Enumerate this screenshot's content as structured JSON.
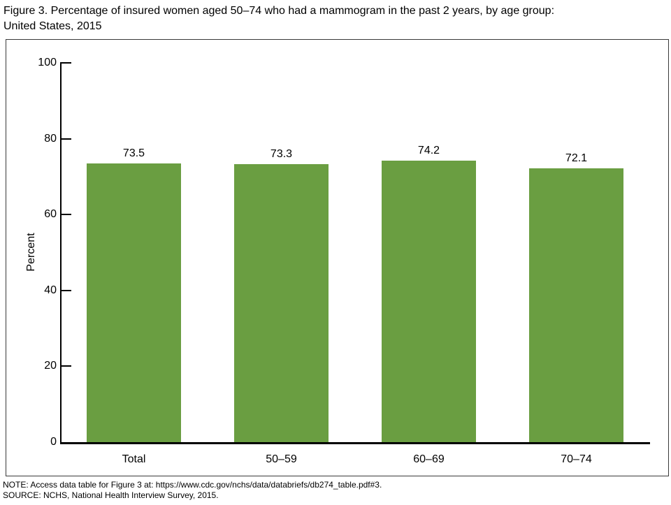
{
  "title": {
    "line1": "Figure 3. Percentage of insured women aged 50–74 who had a mammogram in the past 2 years, by age group:",
    "line2": "United States, 2015"
  },
  "chart_data": {
    "type": "bar",
    "title": "Figure 3. Percentage of insured women aged 50–74 who had a mammogram in the past 2 years, by age group: United States, 2015",
    "categories": [
      "Total",
      "50–59",
      "60–69",
      "70–74"
    ],
    "values": [
      73.5,
      73.3,
      74.2,
      72.1
    ],
    "value_labels": [
      "73.5",
      "73.3",
      "74.2",
      "72.1"
    ],
    "xlabel": "",
    "ylabel": "Percent",
    "ylim": [
      0,
      100
    ],
    "yticks": [
      0,
      20,
      40,
      60,
      80,
      100
    ],
    "grid": false,
    "legend_position": "none",
    "bar_color": "#6a9e41",
    "axis_color": "#000000"
  },
  "footer": {
    "note": "NOTE: Access data table for Figure 3 at: https://www.cdc.gov/nchs/data/databriefs/db274_table.pdf#3.",
    "source": "SOURCE: NCHS, National Health Interview Survey, 2015."
  }
}
